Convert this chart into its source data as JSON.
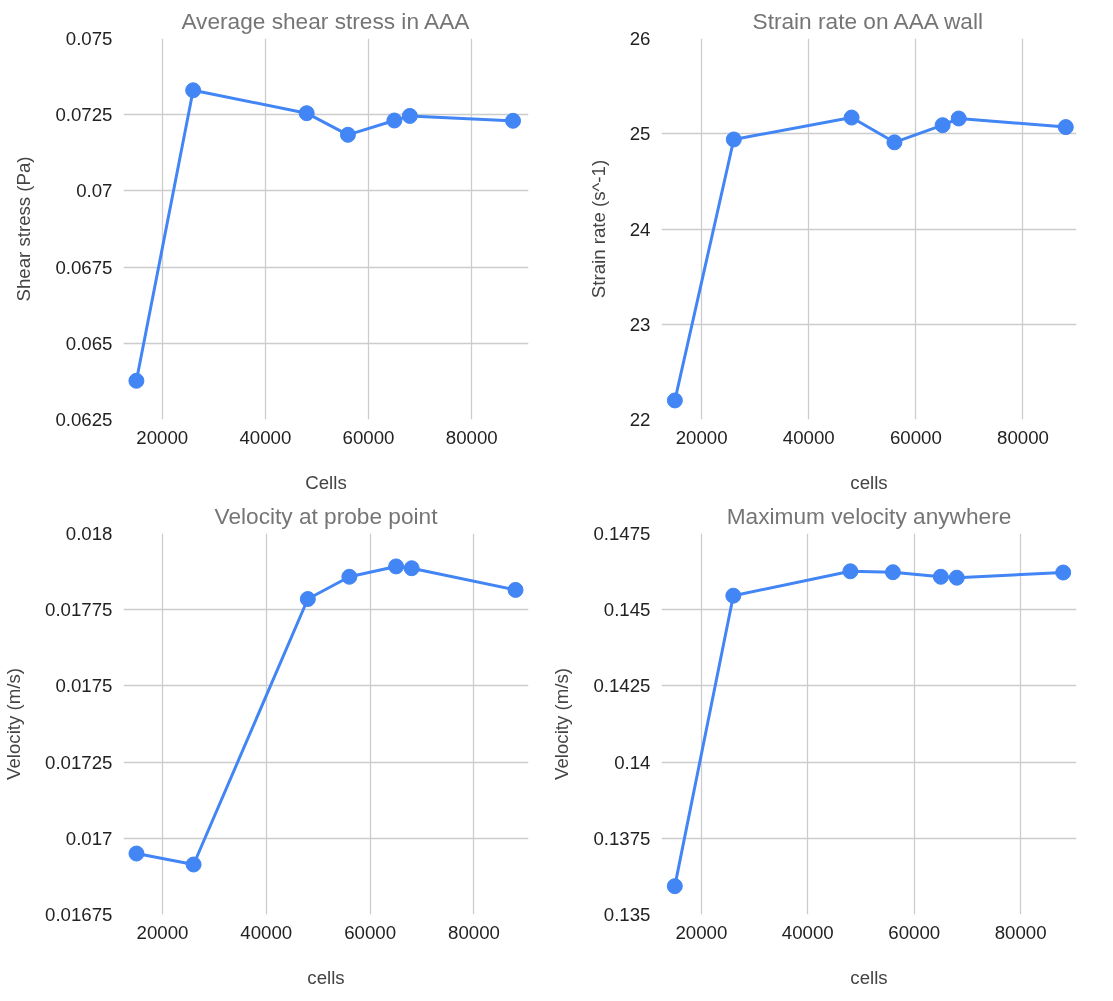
{
  "chart_data": [
    {
      "type": "line",
      "title": "Average shear stress in AAA",
      "xlabel": "Cells",
      "ylabel": "Shear stress (Pa)",
      "x": [
        15000,
        26000,
        48000,
        56000,
        65000,
        68000,
        88000
      ],
      "series": [
        {
          "color": "#4285f4",
          "values": [
            0.06377,
            0.0733,
            0.07255,
            0.07184,
            0.07231,
            0.07246,
            0.0723
          ]
        }
      ],
      "xlim": [
        12500,
        91000
      ],
      "xticks": [
        20000,
        40000,
        60000,
        80000
      ],
      "ylim": [
        0.0625,
        0.075
      ],
      "yticks": [
        0.0625,
        0.065,
        0.0675,
        0.07,
        0.0725,
        0.075
      ],
      "grid": true,
      "marker": "circle",
      "line_style": "solid"
    },
    {
      "type": "line",
      "title": "Strain rate on AAA wall",
      "xlabel": "cells",
      "ylabel": "Strain rate (s^-1)",
      "x": [
        15000,
        26000,
        48000,
        56000,
        65000,
        68000,
        88000
      ],
      "series": [
        {
          "color": "#4285f4",
          "values": [
            22.2,
            24.94,
            25.17,
            24.91,
            25.09,
            25.16,
            25.07
          ]
        }
      ],
      "xlim": [
        12500,
        90000
      ],
      "xticks": [
        20000,
        40000,
        60000,
        80000
      ],
      "ylim": [
        22,
        26
      ],
      "yticks": [
        22,
        23,
        24,
        25,
        26
      ],
      "grid": true,
      "marker": "circle",
      "line_style": "solid"
    },
    {
      "type": "line",
      "title": "Velocity at probe point",
      "xlabel": "cells",
      "ylabel": "Velocity (m/s)",
      "x": [
        15000,
        26000,
        48000,
        56000,
        65000,
        68000,
        88000
      ],
      "series": [
        {
          "color": "#4285f4",
          "values": [
            0.01695,
            0.016914,
            0.017785,
            0.017858,
            0.017892,
            0.017886,
            0.017815
          ]
        }
      ],
      "xlim": [
        12500,
        90500
      ],
      "xticks": [
        20000,
        40000,
        60000,
        80000
      ],
      "ylim": [
        0.01675,
        0.018
      ],
      "yticks": [
        0.01675,
        0.017,
        0.01725,
        0.0175,
        0.01775,
        0.018
      ],
      "grid": true,
      "marker": "circle",
      "line_style": "solid"
    },
    {
      "type": "line",
      "title": "Maximum velocity anywhere",
      "xlabel": "cells",
      "ylabel": "Velocity (m/s)",
      "x": [
        15000,
        26000,
        48000,
        56000,
        65000,
        68000,
        88000
      ],
      "series": [
        {
          "color": "#4285f4",
          "values": [
            0.13593,
            0.14546,
            0.14626,
            0.14623,
            0.14608,
            0.14605,
            0.14622
          ]
        }
      ],
      "xlim": [
        12500,
        90500
      ],
      "xticks": [
        20000,
        40000,
        60000,
        80000
      ],
      "ylim": [
        0.135,
        0.1475
      ],
      "yticks": [
        0.135,
        0.1375,
        0.14,
        0.1425,
        0.145,
        0.1475
      ],
      "grid": true,
      "marker": "circle",
      "line_style": "solid"
    }
  ]
}
